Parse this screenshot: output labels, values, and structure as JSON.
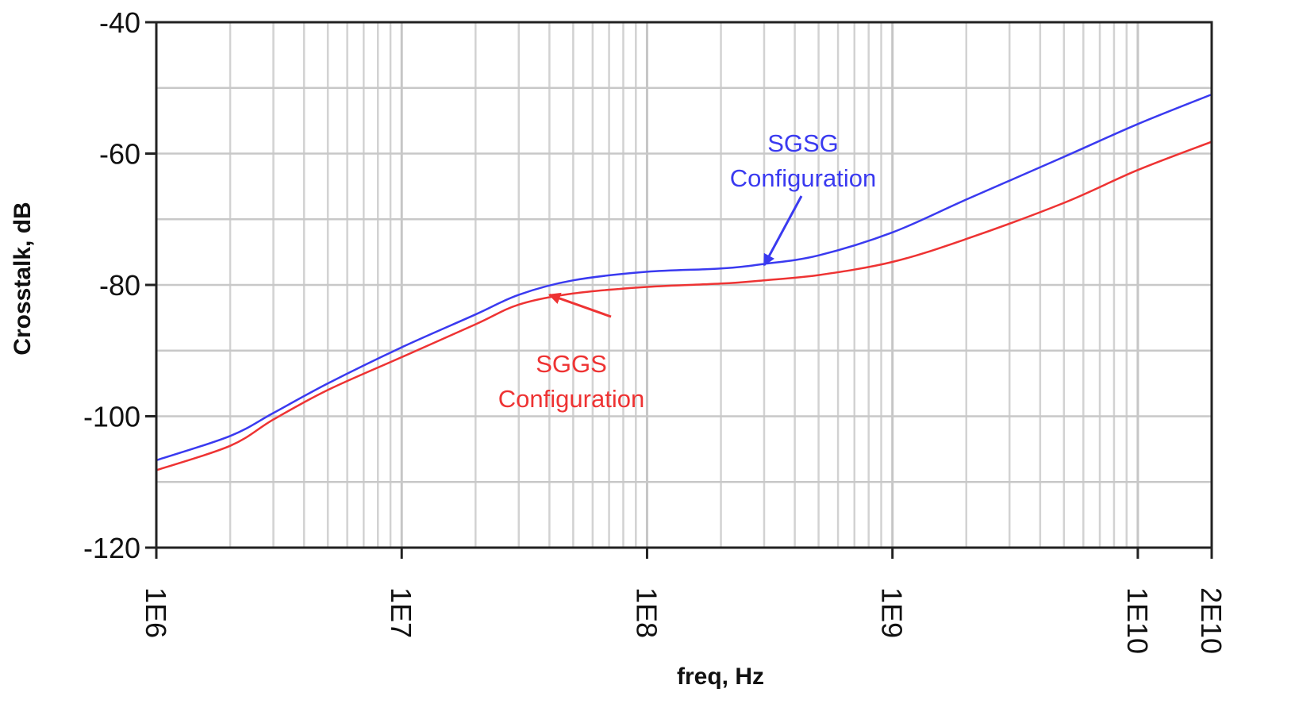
{
  "chart_data": {
    "type": "line",
    "xscale": "log",
    "xlabel": "freq, Hz",
    "ylabel": "Crosstalk, dB",
    "xlim": [
      1000000,
      20000000000
    ],
    "ylim": [
      -120,
      -40
    ],
    "grid": true,
    "x_ticks": [
      {
        "value": 1000000,
        "label": "1E6"
      },
      {
        "value": 10000000,
        "label": "1E7"
      },
      {
        "value": 100000000,
        "label": "1E8"
      },
      {
        "value": 1000000000,
        "label": "1E9"
      },
      {
        "value": 10000000000,
        "label": "1E10"
      },
      {
        "value": 20000000000,
        "label": "2E10"
      }
    ],
    "y_ticks": [
      {
        "value": -40,
        "label": "-40"
      },
      {
        "value": -60,
        "label": "-60"
      },
      {
        "value": -80,
        "label": "-80"
      },
      {
        "value": -100,
        "label": "-100"
      },
      {
        "value": -120,
        "label": "-120"
      }
    ],
    "series": [
      {
        "color": "#3a3af0",
        "x": [
          1000000,
          2000000,
          3000000,
          5000000,
          10000000,
          20000000,
          30000000,
          50000000,
          100000000,
          200000000,
          300000000,
          500000000,
          1000000000,
          2000000000,
          5000000000,
          10000000000,
          20000000000
        ],
        "y": [
          -106.7,
          -103,
          -99.5,
          -95,
          -89.5,
          -84.5,
          -81.5,
          -79.3,
          -78,
          -77.5,
          -76.8,
          -75.5,
          -72,
          -67,
          -60.5,
          -55.5,
          -51
        ]
      },
      {
        "color": "#ee3333",
        "x": [
          1000000,
          2000000,
          3000000,
          5000000,
          10000000,
          20000000,
          30000000,
          50000000,
          100000000,
          200000000,
          300000000,
          500000000,
          1000000000,
          2000000000,
          5000000000,
          10000000000,
          20000000000
        ],
        "y": [
          -108.2,
          -104.5,
          -100.5,
          -96,
          -91,
          -86,
          -83,
          -81.3,
          -80.3,
          -79.8,
          -79.3,
          -78.5,
          -76.5,
          -73,
          -67.5,
          -62.5,
          -58.2
        ]
      }
    ],
    "annotations": [
      {
        "lines": [
          "SGSG",
          "Configuration"
        ],
        "color": "#3a3af0",
        "arrow_to": {
          "x": 300000000,
          "y": -77
        }
      },
      {
        "lines": [
          "SGGS",
          "Configuration"
        ],
        "color": "#ee3333",
        "arrow_to": {
          "x": 40000000,
          "y": -81.5
        }
      }
    ]
  }
}
